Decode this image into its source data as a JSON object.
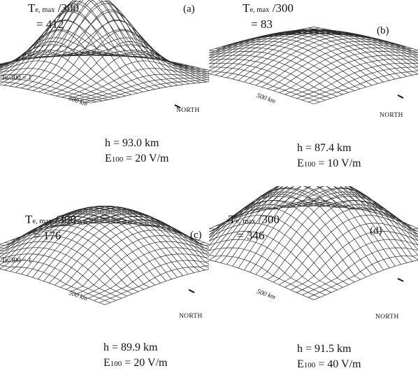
{
  "panels": [
    {
      "letter": "(a)",
      "tmax_main": "T",
      "tmax_sub": "e, max",
      "tmax_tail": " /300",
      "tmax_value": "= 412",
      "ref_label": "Te/300 = 1",
      "distance": "500 km",
      "north": "NORTH",
      "h": "h = 93.0 km",
      "e_main": "E",
      "e_sub": "100",
      "e_value": " = 20 V/m"
    },
    {
      "letter": "(b)",
      "tmax_main": "T",
      "tmax_sub": "e, max",
      "tmax_tail": " /300",
      "tmax_value": "= 83",
      "ref_label": "",
      "distance": "500 km",
      "north": "NORTH",
      "h": "h = 87.4 km",
      "e_main": "E",
      "e_sub": "100",
      "e_value": " = 10 V/m"
    },
    {
      "letter": "(c)",
      "tmax_main": "T",
      "tmax_sub": "e, max",
      "tmax_tail": " /300",
      "tmax_value": "= 176",
      "ref_label": "Te/300 = 1",
      "distance": "500 km",
      "north": "NORTH",
      "h": "h = 89.9 km",
      "e_main": "E",
      "e_sub": "100",
      "e_value": " = 20 V/m"
    },
    {
      "letter": "(d)",
      "tmax_main": "T",
      "tmax_sub": "e, max",
      "tmax_tail": " /300",
      "tmax_value": "= 346",
      "ref_label": "",
      "distance": "500 km",
      "north": "NORTH",
      "h": "h = 91.5 km",
      "e_main": "E",
      "e_sub": "100",
      "e_value": " = 40 V/m"
    }
  ]
}
